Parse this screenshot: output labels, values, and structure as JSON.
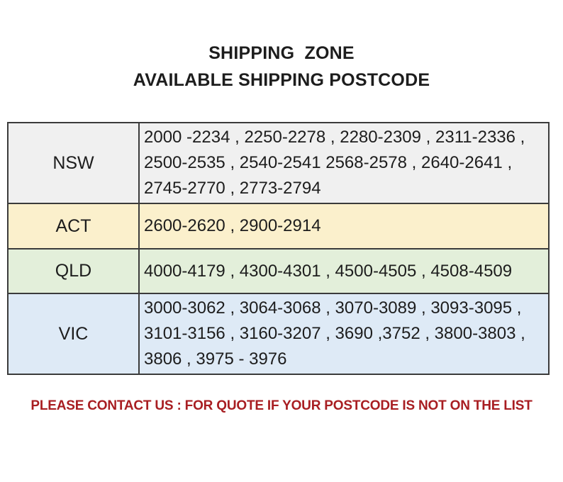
{
  "title": {
    "line1": "SHIPPING  ZONE",
    "line2": "AVAILABLE SHIPPING POSTCODE"
  },
  "table": {
    "rows": [
      {
        "state": "NSW",
        "bg": "#F0F0F0",
        "lines": [
          "2000 -2234 , 2250-2278 , 2280-2309 , 2311-2336 ,",
          "2500-2535 , 2540-2541 2568-2578 , 2640-2641 ,",
          "2745-2770 , 2773-2794"
        ]
      },
      {
        "state": "ACT",
        "bg": "#FBF0CC",
        "lines": [
          "2600-2620 , 2900-2914"
        ]
      },
      {
        "state": "QLD",
        "bg": "#E3EFDA",
        "lines": [
          "4000-4179 , 4300-4301 , 4500-4505 , 4508-4509"
        ]
      },
      {
        "state": "VIC",
        "bg": "#DEEAF6",
        "lines": [
          "3000-3062 , 3064-3068 , 3070-3089 , 3093-3095 ,",
          "3101-3156 , 3160-3207 , 3690 ,3752 , 3800-3803 ,",
          "3806 , 3975 - 3976"
        ]
      }
    ]
  },
  "footer": {
    "notice": "PLEASE CONTACT US : FOR QUOTE IF YOUR POSTCODE IS NOT ON THE LIST"
  },
  "colors": {
    "border": "#3B3B3B",
    "text": "#1D1D1D",
    "notice": "#A81E22"
  }
}
